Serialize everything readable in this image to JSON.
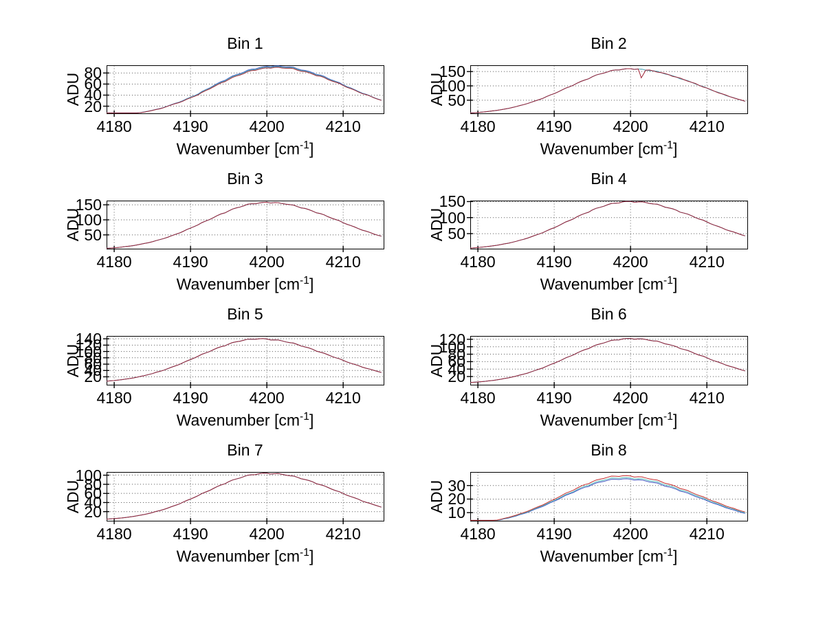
{
  "figure": {
    "background": "#ffffff"
  },
  "axes": {
    "ylabel": "ADU",
    "xlabel_prefix": "Wavenumber [cm",
    "xlabel_exp": "-1",
    "xlabel_suffix": "]",
    "xticks": [
      4180,
      4190,
      4200,
      4210
    ],
    "xlim": [
      4179,
      4215.3
    ],
    "grid": "dotted",
    "grid_color": "#5a5a5a",
    "axis_color": "#000000"
  },
  "chart_data": [
    {
      "type": "line",
      "title": "Bin 1",
      "xlabel": "Wavenumber [cm^-1]",
      "ylabel": "ADU",
      "x_start": 4179,
      "x_step": 1,
      "xlim": [
        4179,
        4215.3
      ],
      "ylim": [
        7,
        94
      ],
      "yticks": [
        20,
        40,
        60,
        80
      ],
      "xticks": [
        4180,
        4190,
        4200,
        4210
      ],
      "noise_amp": 1.2,
      "series": [
        {
          "name": "scan-blue",
          "color": "#3c50c0",
          "values": [
            2,
            3,
            4.1,
            5.7,
            7.4,
            9.7,
            12.6,
            15.7,
            20.3,
            25.2,
            30,
            36.3,
            42.1,
            50,
            57,
            64.3,
            70.8,
            77,
            81.6,
            86.8,
            89.5,
            92,
            92.6,
            91.5,
            91,
            87.7,
            84.7,
            80.4,
            76.4,
            70.2,
            65.1,
            58.7,
            53,
            46.6,
            41.5,
            35.6,
            30.8
          ]
        },
        {
          "name": "scan-teal",
          "color": "#56b8b8",
          "values": [
            2,
            3,
            4.1,
            5.6,
            7.3,
            9.6,
            12.5,
            15.5,
            20,
            24.9,
            29.6,
            35.9,
            41.5,
            49.4,
            56.1,
            63.2,
            69.7,
            75.8,
            80.4,
            85.6,
            88.2,
            90.7,
            91.4,
            90.3,
            89.9,
            86.5,
            83.6,
            79.3,
            75.4,
            69.2,
            64.3,
            58,
            52.4,
            46.1,
            41.2,
            35.4,
            30.7
          ]
        },
        {
          "name": "scan-red",
          "color": "#9e2134",
          "values": [
            2,
            3,
            4,
            5.5,
            7.2,
            9.4,
            12.3,
            15.2,
            19.8,
            24.5,
            29,
            35.2,
            40.6,
            48.3,
            54.8,
            62,
            68.2,
            74.5,
            79,
            84.3,
            86.8,
            89.4,
            90.2,
            89,
            88.7,
            85.2,
            82.4,
            78,
            74.3,
            68.1,
            63.4,
            57.2,
            51.8,
            45.6,
            40.9,
            35.2,
            30.6
          ]
        }
      ]
    },
    {
      "type": "line",
      "title": "Bin 2",
      "xlabel": "Wavenumber [cm^-1]",
      "ylabel": "ADU",
      "x_start": 4179,
      "x_step": 1,
      "xlim": [
        4179,
        4215.3
      ],
      "ylim": [
        4,
        172
      ],
      "yticks": [
        50,
        100,
        150
      ],
      "xticks": [
        4180,
        4190,
        4200,
        4210
      ],
      "noise_amp": 2,
      "series": [
        {
          "name": "scan-blue",
          "color": "#3c50c0",
          "coincident_with": "scan-red"
        },
        {
          "name": "scan-teal",
          "color": "#56b8b8",
          "coincident_with": "scan-red"
        },
        {
          "name": "scan-red",
          "color": "#9e2134",
          "extra_points": [
            [
              4201.4,
              128
            ]
          ],
          "values": [
            5,
            7,
            9.5,
            12.8,
            16.5,
            21.4,
            27.6,
            34.4,
            42.9,
            51.7,
            62.5,
            73,
            85.3,
            96.8,
            109.4,
            120.5,
            132,
            141.5,
            148.8,
            155.4,
            158.3,
            160.1,
            159,
            155,
            152.2,
            146.4,
            139.1,
            130.8,
            121.5,
            112.4,
            101.8,
            92.3,
            81.4,
            72.2,
            62.4,
            54.1,
            46.3
          ]
        }
      ]
    },
    {
      "type": "line",
      "title": "Bin 3",
      "xlabel": "Wavenumber [cm^-1]",
      "ylabel": "ADU",
      "x_start": 4179,
      "x_step": 1,
      "xlim": [
        4179,
        4215.3
      ],
      "ylim": [
        4,
        164
      ],
      "yticks": [
        50,
        100,
        150
      ],
      "xticks": [
        4180,
        4190,
        4200,
        4210
      ],
      "noise_amp": 2,
      "series": [
        {
          "name": "scan-blue",
          "color": "#3c50c0",
          "coincident_with": "scan-red"
        },
        {
          "name": "scan-teal",
          "color": "#56b8b8",
          "coincident_with": "scan-red"
        },
        {
          "name": "scan-red",
          "color": "#9e2134",
          "values": [
            5,
            6.9,
            9.4,
            12.6,
            16.5,
            21.5,
            27,
            34.3,
            42,
            51.6,
            61.2,
            72.8,
            83.5,
            96.2,
            107.4,
            119.6,
            129.6,
            139.8,
            146.9,
            153.5,
            156.2,
            158.4,
            157.4,
            154.1,
            150.6,
            144.2,
            137.9,
            129,
            120.8,
            110.4,
            101.2,
            90.5,
            81.1,
            70.8,
            62.2,
            53,
            45.6
          ]
        }
      ]
    },
    {
      "type": "line",
      "title": "Bin 4",
      "xlabel": "Wavenumber [cm^-1]",
      "ylabel": "ADU",
      "x_start": 4179,
      "x_step": 1,
      "xlim": [
        4179,
        4215.3
      ],
      "ylim": [
        3,
        153
      ],
      "yticks": [
        50,
        100,
        150
      ],
      "xticks": [
        4180,
        4190,
        4200,
        4210
      ],
      "noise_amp": 2,
      "series": [
        {
          "name": "scan-blue",
          "color": "#3c50c0",
          "coincident_with": "scan-red"
        },
        {
          "name": "scan-teal",
          "color": "#56b8b8",
          "coincident_with": "scan-red"
        },
        {
          "name": "scan-red",
          "color": "#9e2134",
          "values": [
            4.8,
            6.6,
            8.9,
            11.9,
            15.8,
            20.2,
            25.9,
            32.3,
            40.3,
            48.6,
            58.6,
            68.4,
            79.9,
            90.8,
            102.6,
            113,
            123.8,
            132,
            140.1,
            145,
            149.2,
            150.4,
            148.8,
            147.1,
            142.4,
            137.6,
            130.2,
            123.3,
            113.9,
            105.6,
            95.3,
            86.6,
            76.3,
            67.8,
            58.5,
            50.9,
            43
          ]
        }
      ]
    },
    {
      "type": "line",
      "title": "Bin 5",
      "xlabel": "Wavenumber [cm^-1]",
      "ylabel": "ADU",
      "x_start": 4179,
      "x_step": 1,
      "xlim": [
        4179,
        4215.3
      ],
      "ylim": [
        -5,
        149
      ],
      "yticks": [
        20,
        40,
        60,
        80,
        100,
        120,
        140
      ],
      "xticks": [
        4180,
        4190,
        4200,
        4210
      ],
      "noise_amp": 1.8,
      "series": [
        {
          "name": "scan-blue",
          "color": "#3c50c0",
          "coincident_with": "scan-red"
        },
        {
          "name": "scan-teal",
          "color": "#56b8b8",
          "coincident_with": "scan-red"
        },
        {
          "name": "scan-red",
          "color": "#9e2134",
          "values": [
            6.1,
            8.3,
            11.1,
            14.6,
            18.9,
            24.1,
            30.2,
            37.4,
            45.5,
            54.5,
            64.1,
            74.3,
            85,
            95.5,
            105.7,
            115.2,
            123.5,
            130.5,
            135.7,
            138.9,
            140.2,
            139.4,
            136.6,
            133.4,
            127.8,
            122.2,
            114.3,
            107,
            97.8,
            89.6,
            80.2,
            71.9,
            62.7,
            55.2,
            47,
            40.5,
            33.8
          ]
        }
      ]
    },
    {
      "type": "line",
      "title": "Bin 6",
      "xlabel": "Wavenumber [cm^-1]",
      "ylabel": "ADU",
      "x_start": 4179,
      "x_step": 1,
      "xlim": [
        4179,
        4215.3
      ],
      "ylim": [
        -2,
        129
      ],
      "yticks": [
        20,
        40,
        60,
        80,
        100,
        120
      ],
      "xticks": [
        4180,
        4190,
        4200,
        4210
      ],
      "noise_amp": 1.5,
      "series": [
        {
          "name": "scan-blue",
          "color": "#3c50c0",
          "coincident_with": "scan-red"
        },
        {
          "name": "scan-teal",
          "color": "#56b8b8",
          "coincident_with": "scan-red"
        },
        {
          "name": "scan-red",
          "color": "#9e2134",
          "values": [
            3.9,
            5.4,
            7.3,
            9.7,
            12.8,
            16.5,
            21,
            26.4,
            32.6,
            39.7,
            47.5,
            55.9,
            64.8,
            74.1,
            83.2,
            92.1,
            100.4,
            107.6,
            113.7,
            118.2,
            121,
            122.3,
            121.1,
            119.5,
            115.8,
            111.9,
            106,
            100.2,
            92.7,
            85.8,
            77.4,
            70.5,
            62.1,
            55.1,
            47.6,
            41.4,
            35
          ]
        }
      ]
    },
    {
      "type": "line",
      "title": "Bin 7",
      "xlabel": "Wavenumber [cm^-1]",
      "ylabel": "ADU",
      "x_start": 4179,
      "x_step": 1,
      "xlim": [
        4179,
        4215.3
      ],
      "ylim": [
        0,
        107
      ],
      "yticks": [
        20,
        40,
        60,
        80,
        100
      ],
      "xticks": [
        4180,
        4190,
        4200,
        4210
      ],
      "noise_amp": 1.3,
      "series": [
        {
          "name": "scan-blue",
          "color": "#3c50c0",
          "coincident_with": "scan-red"
        },
        {
          "name": "scan-teal",
          "color": "#56b8b8",
          "coincident_with": "scan-red"
        },
        {
          "name": "scan-red",
          "color": "#9e2134",
          "values": [
            3.3,
            4.6,
            6.2,
            8.3,
            10.9,
            14,
            17.9,
            22.5,
            27.8,
            33.8,
            40.5,
            47.6,
            55.2,
            63.1,
            70.9,
            78.5,
            85.6,
            91.7,
            96.9,
            100.8,
            103.2,
            104.2,
            103.3,
            101.9,
            98.7,
            95.4,
            90.4,
            85.4,
            79.1,
            73.1,
            66.2,
            59.9,
            53,
            47.1,
            40.6,
            35.3,
            29.9
          ]
        }
      ]
    },
    {
      "type": "line",
      "title": "Bin 8",
      "xlabel": "Wavenumber [cm^-1]",
      "ylabel": "ADU",
      "x_start": 4179,
      "x_step": 1,
      "xlim": [
        4179,
        4215.3
      ],
      "ylim": [
        4,
        40
      ],
      "yticks": [
        10,
        20,
        30
      ],
      "xticks": [
        4180,
        4190,
        4200,
        4210
      ],
      "noise_amp": 0.5,
      "series": [
        {
          "name": "scan-blue",
          "color": "#3c50c0",
          "values": [
            1.6,
            2.1,
            2.8,
            3.7,
            4.7,
            6,
            7.5,
            9.2,
            11.3,
            13.6,
            15.9,
            18.4,
            21.2,
            23.8,
            26.3,
            28.7,
            30.7,
            32.5,
            33.8,
            34.6,
            34.9,
            34.7,
            34.2,
            33.3,
            32.2,
            30.7,
            29,
            27.2,
            25.2,
            23.1,
            20.9,
            18.8,
            16.7,
            14.7,
            12.7,
            11,
            9.4
          ]
        },
        {
          "name": "scan-teal",
          "color": "#56b8b8",
          "values": [
            1.6,
            2.2,
            2.9,
            3.8,
            4.9,
            6.2,
            7.8,
            9.6,
            11.7,
            14.1,
            16.4,
            19,
            21.8,
            24.4,
            27,
            29.5,
            31.5,
            33.4,
            34.7,
            35.5,
            35.8,
            35.6,
            35.1,
            34.2,
            33.1,
            31.6,
            29.9,
            28,
            26,
            23.9,
            21.7,
            19.5,
            17.4,
            15.3,
            13.3,
            11.5,
            9.9
          ]
        },
        {
          "name": "scan-red",
          "color": "#c42b2b",
          "values": [
            1.7,
            2.3,
            3,
            4,
            5.1,
            6.5,
            8.1,
            10,
            12.2,
            14.6,
            17.1,
            19.8,
            22.7,
            25.4,
            28.1,
            30.7,
            32.8,
            34.7,
            36.1,
            36.9,
            37.2,
            37,
            36.5,
            35.6,
            34.4,
            32.9,
            31.1,
            29.2,
            27.1,
            24.9,
            22.6,
            20.4,
            18.2,
            16.1,
            14,
            12.1,
            10.5
          ]
        }
      ]
    }
  ]
}
